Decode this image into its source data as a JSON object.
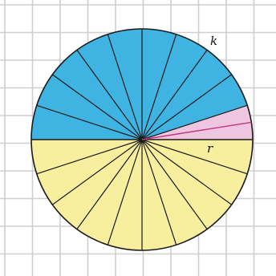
{
  "labels": {
    "circle": "k",
    "radius": "r"
  },
  "colors": {
    "background": "#ffffff",
    "grid": "#cfcfcf",
    "upper_half": "#3fb4e3",
    "lower_half": "#f7ee9e",
    "highlight_sector": "#efc6df",
    "spokes": "#1a1a1a",
    "outline": "#1a1a1a",
    "highlight_line": "#c0387e"
  },
  "diagram": {
    "shape": "circle",
    "sectors_total": 20,
    "upper_sectors": 10,
    "lower_sectors": 10,
    "highlighted_sectors": 1
  }
}
